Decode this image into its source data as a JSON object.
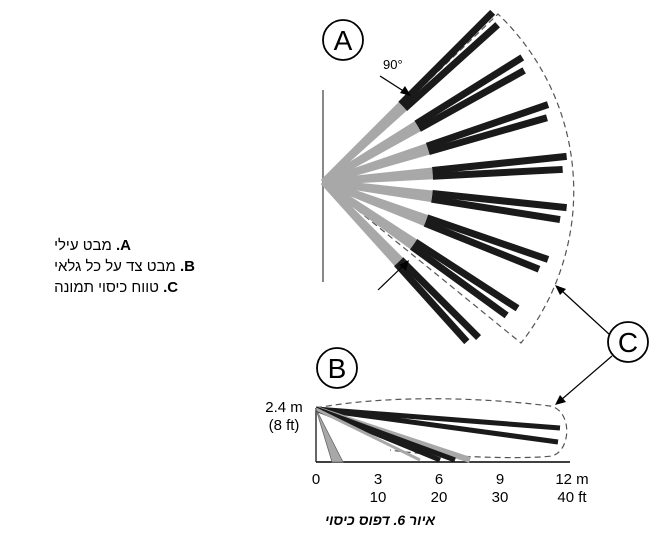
{
  "callouts": {
    "a": "A",
    "b": "B",
    "c": "C"
  },
  "angle_label": "90°",
  "legend": [
    {
      "key": "A",
      "text": "מבט עילי"
    },
    {
      "key": "B",
      "text": "מבט צד על כל גלאי"
    },
    {
      "key": "C",
      "text": "טווח כיסוי תמונה"
    }
  ],
  "side_view": {
    "height_m": "2.4 m",
    "height_ft": "(8 ft)",
    "meters_ticks": [
      "0",
      "3",
      "6",
      "9",
      "12 m"
    ],
    "feet_ticks": [
      "10",
      "20",
      "30",
      "40 ft"
    ]
  },
  "caption": "איור 6. דפוס כיסוי",
  "colors": {
    "beam_dark": "#1a1a1a",
    "beam_light": "#a8a8a8",
    "outline": "#555555"
  }
}
